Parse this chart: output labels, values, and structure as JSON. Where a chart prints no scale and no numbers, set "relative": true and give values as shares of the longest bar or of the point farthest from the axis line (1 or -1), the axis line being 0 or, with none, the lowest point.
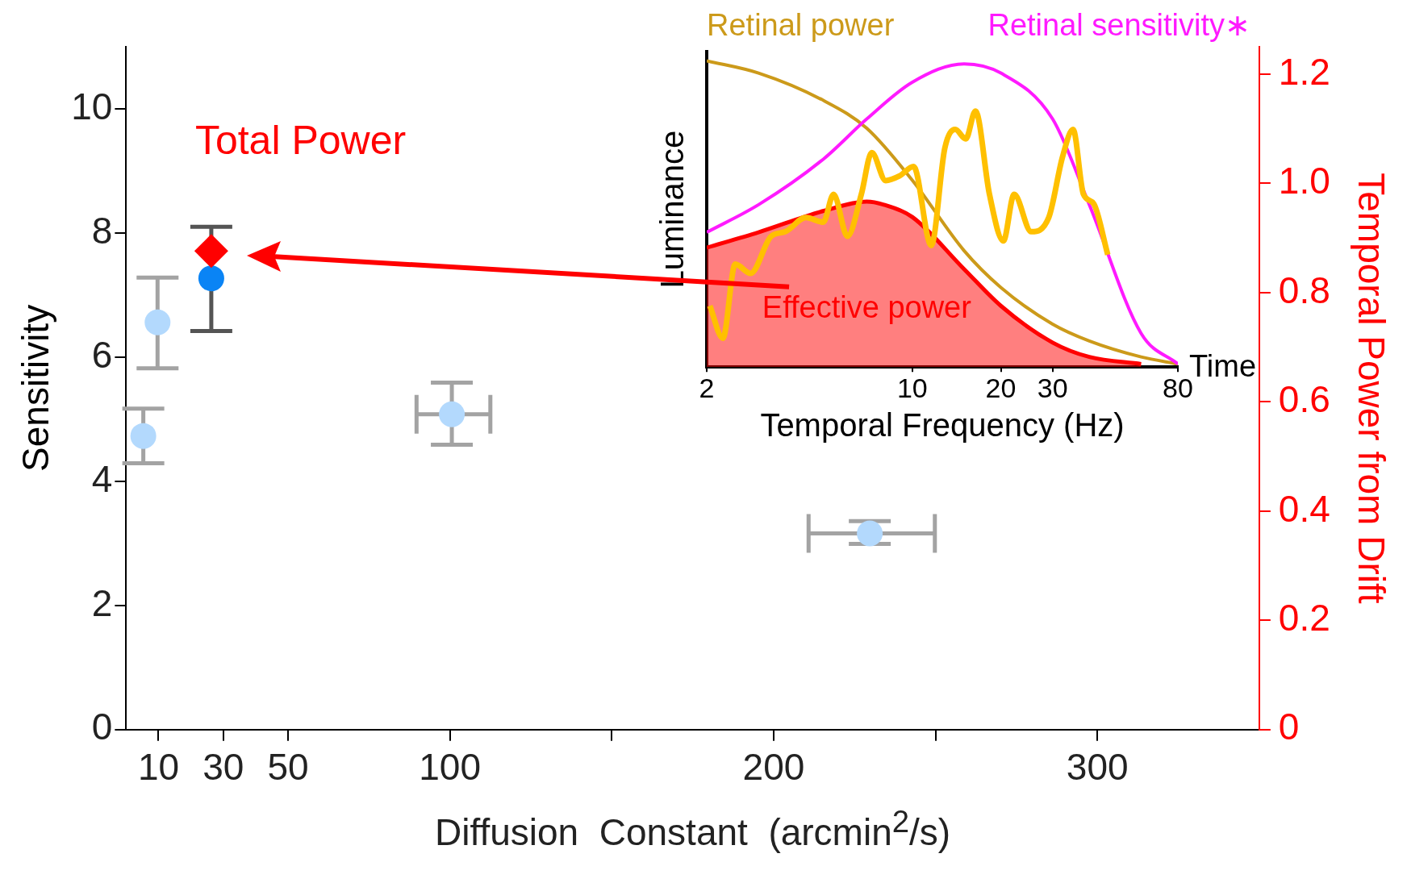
{
  "chart_data": [
    {
      "type": "scatter",
      "xlabel": "Diffusion  Constant  (arcmin$^{2}$/s)",
      "ylabel": "Sensitivity",
      "y2label": "Temporal Power from Drift",
      "annotations": [
        "Total Power"
      ],
      "xlim": [
        0,
        350
      ],
      "xticks": [
        10,
        30,
        50,
        100,
        {
          "value": 150,
          "label": null
        },
        200,
        {
          "value": 250,
          "label": null
        },
        300
      ],
      "ylim": [
        0,
        11
      ],
      "yticks": [
        0,
        2,
        4,
        6,
        8,
        10
      ],
      "y2lim": [
        0,
        1.25
      ],
      "y2ticks": [
        0,
        0.2,
        0.4,
        0.6,
        0.8,
        {
          "value": 1,
          "label": "1.0"
        },
        1.2
      ],
      "series": [
        {
          "color": "#b3d9fd",
          "marker": "circle",
          "x": [
            5.3,
            9.7,
            100.6,
            229.7
          ],
          "values": [
            4.73,
            6.56,
            5.08,
            3.16
          ],
          "errors": [
            [
              4.29,
              5.17
            ],
            [
              5.82,
              7.28
            ],
            [
              4.59,
              5.59
            ],
            [
              2.99,
              3.36
            ]
          ],
          "xerrors": [
            null,
            null,
            [
              89.7,
              112.5
            ],
            [
              210.8,
              249.8
            ]
          ]
        },
        {
          "color": "#0a84f5",
          "marker": "circle",
          "x": [
            26.3
          ],
          "values": [
            7.27
          ],
          "errors": [
            [
              6.42,
              8.1
            ]
          ]
        },
        {
          "color": "#ff0000",
          "marker": "diamond",
          "axis": "y2",
          "x": [
            26.3
          ],
          "values": [
            0.876
          ]
        }
      ]
    },
    {
      "type": "line",
      "xlabel": "Temporal Frequency (Hz)",
      "ylabel": "Luminance",
      "annotations": [
        "Time"
      ],
      "log": "x",
      "xlim": [
        2,
        80
      ],
      "xticks": [
        2,
        10,
        20,
        30,
        80
      ],
      "relative": true,
      "tick_labels": "x",
      "series": [
        {
          "name": "Retinal power",
          "color": "#cc9a1a",
          "x": [
            2,
            3,
            5,
            7,
            10,
            15,
            20,
            30,
            40,
            60,
            80
          ],
          "values": [
            1.0,
            0.96,
            0.87,
            0.78,
            0.61,
            0.38,
            0.26,
            0.14,
            0.085,
            0.033,
            0.01
          ]
        },
        {
          "name": "Retinal sensitivity∗",
          "color": "#ff1aff",
          "x": [
            2,
            3,
            5,
            7,
            10,
            15,
            20,
            30,
            40,
            60,
            80
          ],
          "values": [
            0.44,
            0.53,
            0.68,
            0.81,
            0.93,
            0.99,
            0.96,
            0.81,
            0.53,
            0.11,
            0.01
          ]
        },
        {
          "name": "Effective power",
          "type": "area",
          "color": "#ff0000",
          "x": [
            2,
            3,
            5,
            7,
            8,
            10,
            15,
            20,
            30,
            40,
            60
          ],
          "values": [
            0.39,
            0.44,
            0.51,
            0.54,
            0.53,
            0.49,
            0.32,
            0.2,
            0.08,
            0.033,
            0.01
          ]
        },
        {
          "color": "#ffc000",
          "x": [
            2.05,
            2.27,
            2.5,
            2.82,
            3.31,
            3.7,
            4.35,
            4.98,
            5.4,
            6.02,
            6.71,
            7.28,
            8.12,
            9.05,
            10.1,
            11.6,
            12.9,
            14.0,
            15.2,
            16.4,
            18.3,
            20.4,
            22.2,
            25.4,
            29.1,
            32.4,
            35.2,
            38.2,
            41.4,
            46.2
          ],
          "values": [
            0.2,
            0.094,
            0.336,
            0.306,
            0.427,
            0.442,
            0.488,
            0.473,
            0.564,
            0.427,
            0.564,
            0.7,
            0.609,
            0.624,
            0.655,
            0.397,
            0.715,
            0.776,
            0.745,
            0.836,
            0.564,
            0.412,
            0.564,
            0.442,
            0.488,
            0.685,
            0.776,
            0.564,
            0.533,
            0.367
          ]
        }
      ]
    }
  ]
}
